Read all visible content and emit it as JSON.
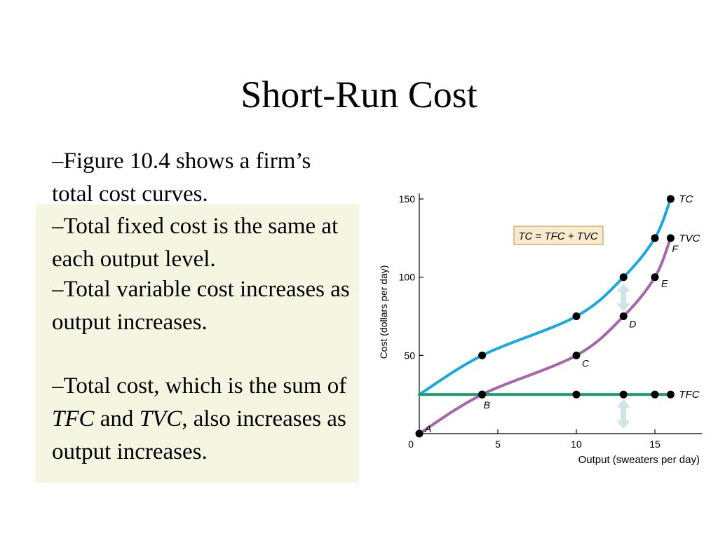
{
  "slide": {
    "title": "Short-Run Cost",
    "bullets": {
      "b1": "–Figure 10.4 shows a firm’s total cost curves.",
      "b2": "–Total fixed cost is the same at each output level.",
      "b3": "–Total variable cost increases as output increases.",
      "b4": {
        "part1": "–Total cost, which is the sum of ",
        "tfc": "TFC",
        "and": " and ",
        "tvc": "TVC,",
        "part2": " also increases as output increases."
      }
    }
  },
  "chart_data": {
    "type": "line",
    "xlabel": "Output (sweaters per day)",
    "ylabel": "Cost (dollars per day)",
    "xlim": [
      0,
      18
    ],
    "ylim": [
      0,
      150
    ],
    "x_ticks": [
      "0",
      "5",
      "10",
      "15"
    ],
    "x_tick_values": [
      0,
      5,
      10,
      15
    ],
    "y_ticks": [
      "50",
      "100",
      "150"
    ],
    "y_tick_values": [
      50,
      100,
      150
    ],
    "equation_label": "TC = TFC + TVC",
    "colors": {
      "TC": "#1ba9dc",
      "TVC": "#a468a9",
      "TFC": "#1aa06d",
      "arrow": "#cfe4e7",
      "label_box": "#fbeacc",
      "label_border": "#c49a5a"
    },
    "series": [
      {
        "name": "TC",
        "x": [
          0,
          4,
          10,
          13,
          15,
          16
        ],
        "y": [
          25,
          50,
          75,
          100,
          125,
          150
        ]
      },
      {
        "name": "TVC",
        "x": [
          0,
          4,
          10,
          13,
          15,
          16
        ],
        "y": [
          0,
          25,
          50,
          75,
          100,
          125
        ]
      },
      {
        "name": "TFC",
        "x": [
          0,
          4,
          10,
          13,
          15,
          16
        ],
        "y": [
          25,
          25,
          25,
          25,
          25,
          25
        ]
      }
    ],
    "point_labels": [
      {
        "label": "A",
        "x": 0,
        "y": 0
      },
      {
        "label": "B",
        "x": 4,
        "y": 25
      },
      {
        "label": "C",
        "x": 10,
        "y": 50
      },
      {
        "label": "D",
        "x": 13,
        "y": 75
      },
      {
        "label": "E",
        "x": 15,
        "y": 100
      },
      {
        "label": "F",
        "x": 16,
        "y": 125
      }
    ]
  }
}
